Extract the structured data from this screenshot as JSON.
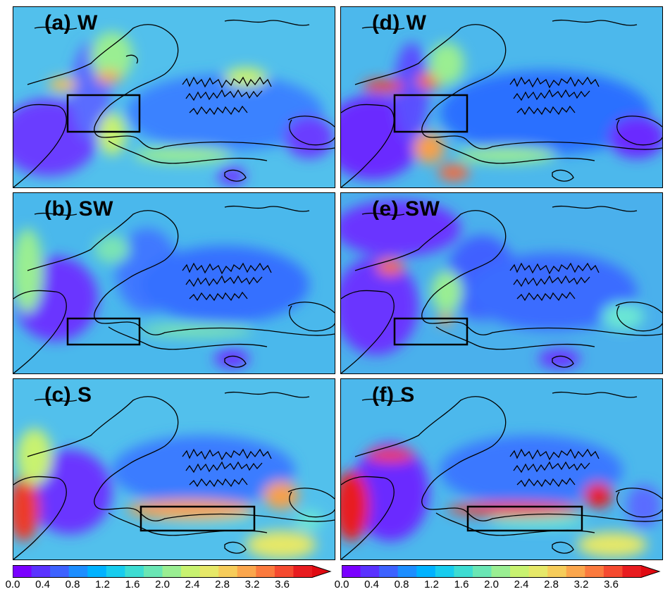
{
  "panels": [
    {
      "id": "a",
      "label": "(a) W",
      "box": "west"
    },
    {
      "id": "d",
      "label": "(d) W",
      "box": "west"
    },
    {
      "id": "b",
      "label": "(b) SW",
      "box": "south"
    },
    {
      "id": "e",
      "label": "(e) SW",
      "box": "south"
    },
    {
      "id": "c",
      "label": "(c) S",
      "box": "gulf"
    },
    {
      "id": "f",
      "label": "(f) S",
      "box": "gulf"
    }
  ],
  "colorbar": {
    "ticks": [
      "0.0",
      "0.4",
      "0.8",
      "1.2",
      "1.6",
      "2.0",
      "2.4",
      "2.8",
      "3.2",
      "3.6"
    ],
    "colors": [
      "#7a00ff",
      "#5a32ff",
      "#3d62ff",
      "#1d8eff",
      "#00b2ff",
      "#18ccee",
      "#3ddcd2",
      "#6ae6b4",
      "#9aee92",
      "#c8f270",
      "#e6e868",
      "#f6cc5a",
      "#fba64c",
      "#fb7a3e",
      "#f54a30",
      "#e81c20",
      "#e00a12"
    ],
    "extend": "max",
    "range": [
      0.0,
      4.0
    ]
  },
  "colors": {
    "background_field": "#5ec8ec",
    "coastline": "#000000",
    "low_value": "#6a34ff",
    "high_value": "#e8261e"
  }
}
